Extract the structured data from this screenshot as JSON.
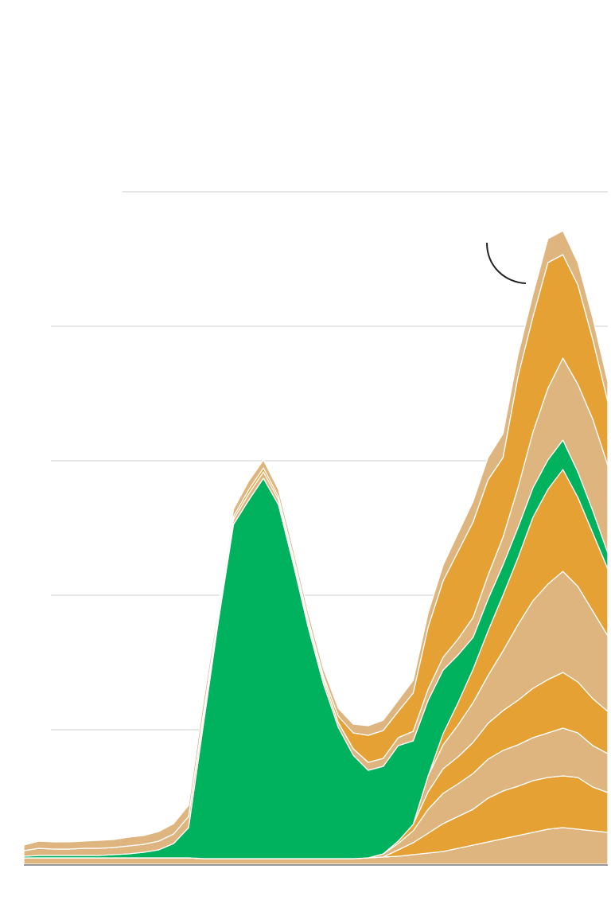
{
  "chart_data": {
    "type": "area",
    "stacked": true,
    "title": "",
    "xlabel": "",
    "ylabel": "",
    "x": [
      0,
      1,
      2,
      3,
      4,
      5,
      6,
      7,
      8,
      9,
      10,
      11,
      12,
      13,
      14,
      15,
      16,
      17,
      18,
      19,
      20,
      21,
      22,
      23,
      24,
      25,
      26,
      27,
      28,
      29,
      30,
      31,
      32,
      33,
      34,
      35,
      36,
      37,
      38,
      39
    ],
    "ylim": [
      0,
      880
    ],
    "gridlines": [
      169,
      338,
      507,
      676,
      845
    ],
    "grid": true,
    "legend": "none",
    "colors": {
      "green": "#00b15e",
      "orange": "#e6a135",
      "tan": "#deb47f",
      "grid": "#cccccc",
      "baseline": "#999999",
      "annotation": "#222222"
    },
    "series": [
      {
        "color": "tan",
        "values": [
          8,
          8,
          8,
          8,
          8,
          8,
          8,
          8,
          8,
          8,
          8,
          8,
          7,
          7,
          7,
          7,
          7,
          7,
          7,
          7,
          7,
          7,
          7,
          8,
          9,
          10,
          12,
          14,
          16,
          20,
          24,
          28,
          32,
          36,
          40,
          44,
          46,
          44,
          42,
          40
        ]
      },
      {
        "color": "orange",
        "values": [
          0,
          0,
          0,
          0,
          0,
          0,
          0,
          0,
          0,
          0,
          0,
          0,
          0,
          0,
          0,
          0,
          0,
          0,
          0,
          0,
          0,
          0,
          0,
          0,
          0,
          8,
          15,
          25,
          35,
          40,
          45,
          55,
          60,
          62,
          65,
          65,
          65,
          65,
          55,
          50
        ]
      },
      {
        "color": "tan",
        "values": [
          0,
          0,
          0,
          0,
          0,
          0,
          0,
          0,
          0,
          0,
          0,
          0,
          0,
          0,
          0,
          0,
          0,
          0,
          0,
          0,
          0,
          0,
          0,
          0,
          4,
          8,
          15,
          30,
          38,
          41,
          45,
          49,
          51,
          52,
          54,
          56,
          60,
          56,
          52,
          49
        ]
      },
      {
        "color": "orange",
        "values": [
          0,
          0,
          0,
          0,
          0,
          0,
          0,
          0,
          0,
          0,
          0,
          0,
          0,
          0,
          0,
          0,
          0,
          0,
          0,
          0,
          0,
          0,
          0,
          0,
          0,
          3,
          8,
          22,
          31,
          34,
          39,
          45,
          50,
          56,
          62,
          67,
          70,
          64,
          59,
          53
        ]
      },
      {
        "color": "tan",
        "values": [
          0,
          0,
          0,
          0,
          0,
          0,
          0,
          0,
          0,
          0,
          0,
          0,
          0,
          0,
          0,
          0,
          0,
          0,
          0,
          0,
          0,
          0,
          0,
          0,
          0,
          0,
          0,
          20,
          30,
          40,
          50,
          60,
          75,
          95,
          110,
          120,
          127,
          120,
          110,
          95
        ]
      },
      {
        "color": "orange",
        "values": [
          0,
          0,
          0,
          0,
          0,
          0,
          0,
          0,
          0,
          0,
          0,
          0,
          0,
          0,
          0,
          0,
          0,
          0,
          0,
          0,
          0,
          0,
          0,
          0,
          0,
          0,
          0,
          0,
          14,
          28,
          42,
          56,
          70,
          84,
          105,
          119,
          128,
          112,
          98,
          84
        ]
      },
      {
        "color": "green",
        "values": [
          2,
          3,
          3,
          3,
          3,
          3,
          4,
          5,
          7,
          10,
          18,
          38,
          170,
          300,
          420,
          450,
          478,
          445,
          370,
          290,
          220,
          165,
          130,
          110,
          110,
          120,
          105,
          95,
          80,
          60,
          40,
          40,
          38,
          38,
          37,
          37,
          37,
          32,
          28,
          20
        ]
      },
      {
        "color": "tan",
        "values": [
          7,
          9,
          8,
          8,
          9,
          9,
          9,
          10,
          10,
          11,
          12,
          14,
          10,
          6,
          6,
          8,
          8,
          6,
          6,
          6,
          6,
          6,
          8,
          10,
          10,
          10,
          12,
          14,
          16,
          20,
          25,
          30,
          35,
          50,
          70,
          90,
          103,
          110,
          115,
          110
        ]
      },
      {
        "color": "orange",
        "values": [
          0,
          0,
          0,
          0,
          0,
          0,
          0,
          0,
          0,
          0,
          0,
          0,
          4,
          4,
          4,
          5,
          5,
          4,
          4,
          4,
          4,
          8,
          20,
          34,
          35,
          33,
          48,
          78,
          96,
          110,
          120,
          120,
          100,
          140,
          145,
          158,
          130,
          125,
          100,
          80
        ]
      },
      {
        "color": "tan",
        "values": [
          7,
          9,
          9,
          9,
          9,
          10,
          10,
          11,
          11,
          12,
          13,
          14,
          15,
          9,
          9,
          11,
          10,
          9,
          9,
          9,
          9,
          10,
          11,
          12,
          13,
          14,
          16,
          18,
          20,
          23,
          26,
          28,
          30,
          27,
          28,
          30,
          30,
          28,
          27,
          25
        ]
      }
    ]
  }
}
